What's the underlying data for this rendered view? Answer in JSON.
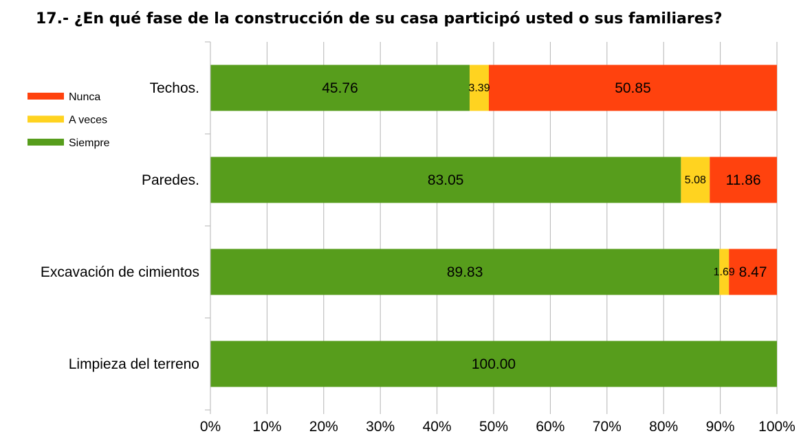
{
  "chart_data": {
    "type": "bar",
    "orientation": "horizontal",
    "stacked": "percent",
    "title": "17.- ¿En qué fase de la construcción de su casa participó usted o sus familiares?",
    "categories": [
      "Techos.",
      "Paredes.",
      "Excavación de cimientos",
      "Limpieza del terreno"
    ],
    "series": [
      {
        "name": "Siempre",
        "color": "#579D1C",
        "values": [
          45.76,
          83.05,
          89.83,
          100.0
        ]
      },
      {
        "name": "A veces",
        "color": "#FFD320",
        "values": [
          3.39,
          5.08,
          1.69,
          0
        ]
      },
      {
        "name": "Nunca",
        "color": "#FF420E",
        "values": [
          50.85,
          11.86,
          8.47,
          0
        ]
      }
    ],
    "xlim": [
      0,
      100
    ],
    "x_ticks": [
      "0%",
      "10%",
      "20%",
      "30%",
      "40%",
      "50%",
      "60%",
      "70%",
      "80%",
      "90%",
      "100%"
    ],
    "legend_order": [
      "Nunca",
      "A veces",
      "Siempre"
    ],
    "legend_labels": {
      "Nunca": "Nunca",
      "A veces": "A veces",
      "Siempre": "Siempre"
    },
    "legend_position": "left",
    "grid": true
  }
}
